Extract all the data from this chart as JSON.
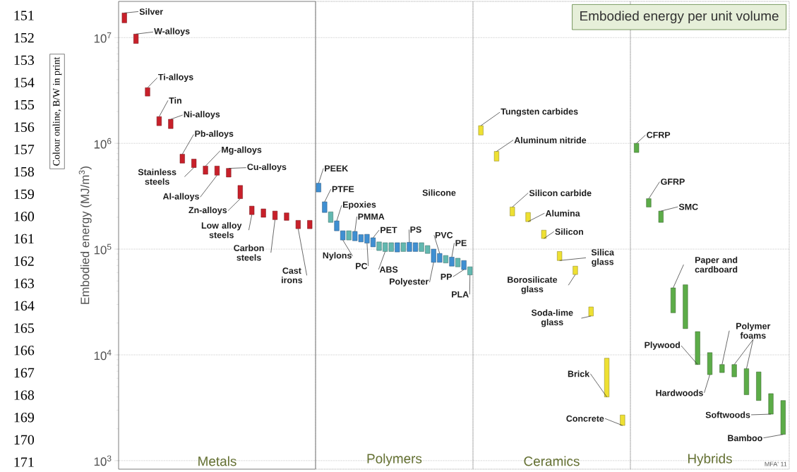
{
  "chart_data": [
    {
      "type": "bar",
      "xlabel": "Metals",
      "ylabel": "Embodied energy (MJ/m$^{3}$)",
      "categories": [
        null,
        null,
        null,
        null,
        null,
        null,
        null,
        null,
        null,
        null,
        null,
        null,
        null,
        null,
        null,
        null,
        null
      ],
      "base": [
        13800000,
        8800000,
        2800000,
        1470000,
        1380000,
        650000,
        590000,
        510000,
        500000,
        480000,
        300000,
        212000,
        200000,
        190000,
        187000,
        156000,
        156000
      ],
      "values": [
        3300000,
        2000000,
        560000,
        320000,
        310000,
        140000,
        120000,
        100000,
        110000,
        100000,
        100000,
        43000,
        40000,
        39000,
        33000,
        31000,
        31000
      ],
      "color": "#c8202a",
      "log": true,
      "ylim": [
        830,
        22000000
      ],
      "yticks": [
        {
          "value": 1000,
          "label": "10$^{3}$"
        },
        {
          "value": 10000,
          "label": "10$^{4}$"
        },
        {
          "value": 100000,
          "label": "10$^{5}$"
        },
        {
          "value": 1000000,
          "label": "10$^{6}$"
        },
        {
          "value": 10000000,
          "label": "10$^{7}$"
        }
      ],
      "grid": "y",
      "tick_labels": "y",
      "annotations": [
        "Silver",
        "W-alloys",
        "Ti-alloys",
        "Tin",
        "Ni-alloys",
        "Pb-alloys",
        "Stainless steels",
        "Mg-alloys",
        "Al-alloys",
        "Cu-alloys",
        "Zn-alloys",
        "Low alloy steels",
        "Carbon steels",
        "Cast irons",
        "Colour online, B/W in print",
        "151",
        "152",
        "153",
        "154",
        "155",
        "156",
        "157",
        "158",
        "159",
        "160",
        "161",
        "162",
        "163",
        "164",
        "165",
        "166",
        "167",
        "168",
        "169",
        "170",
        "171"
      ]
    },
    {
      "type": "bar",
      "xlabel": "Polymers",
      "categories": [
        null,
        null,
        null,
        null,
        null,
        null,
        null,
        null,
        null,
        null,
        null,
        null,
        null,
        null,
        null,
        null,
        null,
        null,
        null,
        null,
        null,
        null,
        null,
        null,
        null,
        null
      ],
      "base": [
        347000,
        222000,
        179000,
        149000,
        122000,
        122000,
        120000,
        117000,
        114000,
        105000,
        97000,
        95000,
        95000,
        94000,
        95000,
        95000,
        95000,
        95000,
        91000,
        75000,
        75000,
        74000,
        69000,
        68000,
        64000,
        57000
      ],
      "values": [
        73000,
        58000,
        46000,
        36000,
        27000,
        27000,
        27000,
        20000,
        24000,
        23000,
        20000,
        20000,
        20000,
        21000,
        20000,
        21000,
        20000,
        20000,
        17000,
        25000,
        16000,
        13000,
        15000,
        14000,
        14000,
        11000
      ],
      "colors": [
        "#3f8fd2",
        "#3f8fd2",
        "#62b8b0",
        "#3f8fd2",
        "#3f8fd2",
        "#62b8b0",
        "#3f8fd2",
        "#3f8fd2",
        "#3f8fd2",
        "#3f8fd2",
        "#62b8b0",
        "#62b8b0",
        "#62b8b0",
        "#3f8fd2",
        "#62b8b0",
        "#3f8fd2",
        "#3f8fd2",
        "#62b8b0",
        "#62b8b0",
        "#3f8fd2",
        "#3f8fd2",
        "#62b8b0",
        "#3f8fd2",
        "#62b8b0",
        "#3f8fd2",
        "#62b8b0"
      ],
      "log": true,
      "ylim": [
        830,
        22000000
      ],
      "yticks": [
        1000,
        10000,
        100000,
        1000000,
        10000000
      ],
      "grid": "y",
      "tick_labels": false,
      "annotations": [
        "PEEK",
        "PTFE",
        "Epoxies",
        "Nylons",
        "PMMA",
        "PC",
        "PET",
        "ABS",
        "PS",
        "Polyester",
        "PVC",
        "PE",
        "PP",
        "PLA",
        "Silicone"
      ]
    },
    {
      "type": "bar",
      "xlabel": "Ceramics",
      "categories": [
        null,
        null,
        null,
        null,
        null,
        null,
        null,
        null,
        null,
        null
      ],
      "base": [
        1200000,
        680000,
        206000,
        182000,
        126000,
        78000,
        57500,
        23300,
        4000,
        2150
      ],
      "values": [
        270000,
        160000,
        44000,
        40000,
        25000,
        17000,
        11500,
        5100,
        5300,
        550
      ],
      "color": "#eee032",
      "log": true,
      "ylim": [
        830,
        22000000
      ],
      "yticks": [
        1000,
        10000,
        100000,
        1000000,
        10000000
      ],
      "grid": "y",
      "tick_labels": false,
      "annotations": [
        "Tungsten carbides",
        "Aluminum nitride",
        "Silicon carbide",
        "Alumina",
        "Silicon",
        "Silica glass",
        "Borosilicate glass",
        "Soda-lime glass",
        "Brick",
        "Concrete"
      ]
    },
    {
      "type": "bar",
      "xlabel": "Hybrids",
      "title": "Embodied energy per unit volume",
      "categories": [
        null,
        null,
        null,
        null,
        null,
        null,
        null,
        null,
        null,
        null,
        null,
        null,
        null
      ],
      "base": [
        820000,
        250000,
        179000,
        25000,
        17700,
        8100,
        6500,
        6800,
        6200,
        4200,
        3700,
        2750,
        1770
      ],
      "values": [
        180000,
        50000,
        50000,
        18000,
        28300,
        8500,
        4000,
        1300,
        1900,
        3200,
        3200,
        1550,
        1930
      ],
      "color": "#5cac48",
      "log": true,
      "ylim": [
        830,
        22000000
      ],
      "yticks": [
        1000,
        10000,
        100000,
        1000000,
        10000000
      ],
      "grid": "y",
      "tick_labels": false,
      "annotations": [
        "CFRP",
        "GFRP",
        "SMC",
        "Paper and cardboard",
        "Plywood",
        "Hardwoods",
        "Polymer foams",
        "Softwoods",
        "Bamboo",
        "MFA' 11"
      ]
    }
  ]
}
